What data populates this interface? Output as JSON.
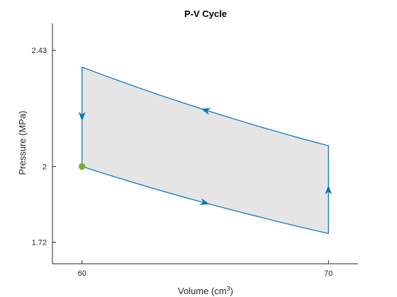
{
  "chart_data": {
    "type": "line",
    "title": "P-V Cycle",
    "xlabel": "Volume (cm",
    "xlabel_superscript": "3",
    "xlabel_suffix": ")",
    "ylabel": "Pressure (MPa)",
    "xlim": [
      58.8,
      71.2
    ],
    "ylim": [
      1.64,
      2.53
    ],
    "xticks": [
      60,
      70
    ],
    "xtick_labels": [
      "60",
      "70"
    ],
    "yticks": [
      1.72,
      2,
      2.43
    ],
    "ytick_labels": [
      "1.72",
      "2",
      "2.43"
    ],
    "grid": false,
    "series": [
      {
        "x": [
          60,
          61,
          62,
          63,
          64,
          65,
          66,
          67,
          68,
          69,
          70,
          70,
          69,
          68,
          67,
          66,
          65,
          64,
          63,
          62,
          61,
          60,
          60
        ],
        "y": [
          2.0,
          1.971,
          1.943,
          1.916,
          1.89,
          1.865,
          1.841,
          1.818,
          1.795,
          1.773,
          1.752,
          2.077,
          2.101,
          2.127,
          2.153,
          2.181,
          2.209,
          2.239,
          2.269,
          2.301,
          2.334,
          2.368,
          2.0
        ],
        "fill": true
      }
    ],
    "direction_arrows": [
      {
        "x": 65,
        "y": 1.865
      },
      {
        "x": 70,
        "y": 1.915
      },
      {
        "x": 65,
        "y": 2.209
      },
      {
        "x": 60,
        "y": 2.184
      }
    ],
    "start_marker": {
      "x": 60,
      "y": 2.0
    },
    "colors": {
      "line": "#0072BD",
      "fill": "#E5E5E5",
      "marker": "#77AC30",
      "axis": "#262626"
    }
  }
}
